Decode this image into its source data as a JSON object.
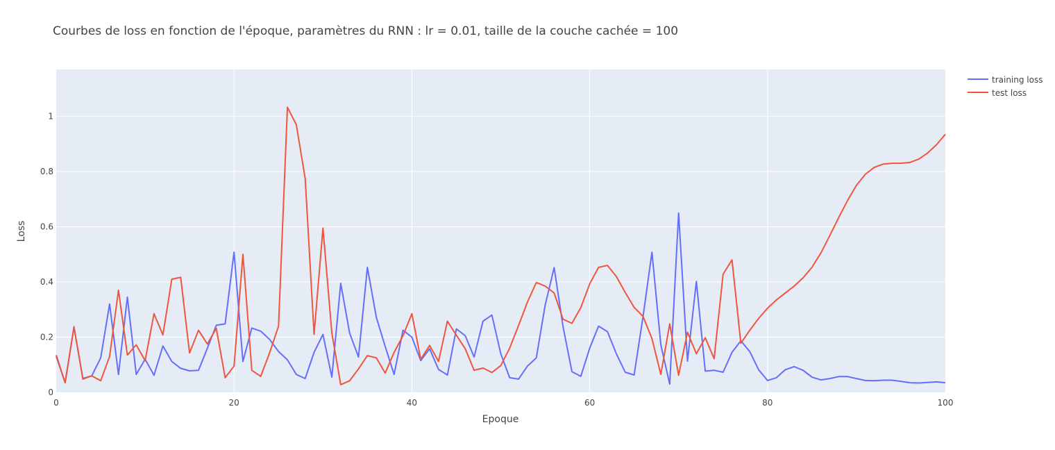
{
  "chart_data": {
    "type": "line",
    "title": "Courbes de loss en fonction de l'époque, paramètres du RNN : lr = 0.01, taille de la couche cachée = 100",
    "xlabel": "Epoque",
    "ylabel": "Loss",
    "xlim": [
      0,
      100
    ],
    "ylim": [
      0,
      1.17
    ],
    "xticks": [
      0,
      20,
      40,
      60,
      80,
      100
    ],
    "yticks": [
      0,
      0.2,
      0.4,
      0.6,
      0.8,
      1
    ],
    "ytick_labels": [
      "0",
      "0.2",
      "0.4",
      "0.6",
      "0.8",
      "1"
    ],
    "grid": true,
    "legend_position": "top-right",
    "colors": {
      "plot_bg": "#e5ecf6",
      "grid": "#ffffff",
      "text": "#444444"
    },
    "series": [
      {
        "name": "training loss",
        "color": "#636efa",
        "values": [
          0.13,
          0.035,
          0.235,
          0.05,
          0.06,
          0.125,
          0.32,
          0.065,
          0.345,
          0.065,
          0.12,
          0.062,
          0.168,
          0.112,
          0.087,
          0.078,
          0.08,
          0.16,
          0.243,
          0.248,
          0.508,
          0.112,
          0.233,
          0.222,
          0.192,
          0.148,
          0.118,
          0.065,
          0.05,
          0.145,
          0.21,
          0.055,
          0.395,
          0.215,
          0.128,
          0.453,
          0.272,
          0.166,
          0.065,
          0.225,
          0.2,
          0.115,
          0.158,
          0.083,
          0.063,
          0.23,
          0.205,
          0.128,
          0.258,
          0.28,
          0.14,
          0.053,
          0.048,
          0.095,
          0.125,
          0.318,
          0.452,
          0.238,
          0.075,
          0.058,
          0.16,
          0.24,
          0.22,
          0.14,
          0.073,
          0.063,
          0.275,
          0.508,
          0.172,
          0.03,
          0.65,
          0.113,
          0.402,
          0.077,
          0.08,
          0.073,
          0.145,
          0.187,
          0.148,
          0.082,
          0.043,
          0.053,
          0.082,
          0.093,
          0.08,
          0.055,
          0.045,
          0.05,
          0.057,
          0.057,
          0.05,
          0.043,
          0.042,
          0.044,
          0.044,
          0.04,
          0.035,
          0.034,
          0.036,
          0.038,
          0.035
        ]
      },
      {
        "name": "test loss",
        "color": "#ef553b",
        "values": [
          0.135,
          0.035,
          0.238,
          0.048,
          0.06,
          0.042,
          0.13,
          0.37,
          0.135,
          0.172,
          0.115,
          0.285,
          0.208,
          0.41,
          0.417,
          0.143,
          0.225,
          0.175,
          0.232,
          0.053,
          0.095,
          0.5,
          0.08,
          0.058,
          0.143,
          0.24,
          1.033,
          0.97,
          0.775,
          0.21,
          0.595,
          0.215,
          0.028,
          0.042,
          0.085,
          0.133,
          0.125,
          0.07,
          0.145,
          0.205,
          0.285,
          0.12,
          0.17,
          0.112,
          0.258,
          0.207,
          0.158,
          0.08,
          0.088,
          0.072,
          0.097,
          0.16,
          0.242,
          0.327,
          0.398,
          0.385,
          0.36,
          0.265,
          0.25,
          0.307,
          0.393,
          0.453,
          0.46,
          0.42,
          0.362,
          0.308,
          0.275,
          0.195,
          0.065,
          0.248,
          0.062,
          0.218,
          0.14,
          0.198,
          0.122,
          0.428,
          0.48,
          0.178,
          0.225,
          0.268,
          0.305,
          0.335,
          0.36,
          0.385,
          0.415,
          0.453,
          0.505,
          0.568,
          0.633,
          0.695,
          0.75,
          0.79,
          0.815,
          0.827,
          0.83,
          0.83,
          0.833,
          0.845,
          0.867,
          0.897,
          0.935
        ]
      }
    ]
  }
}
